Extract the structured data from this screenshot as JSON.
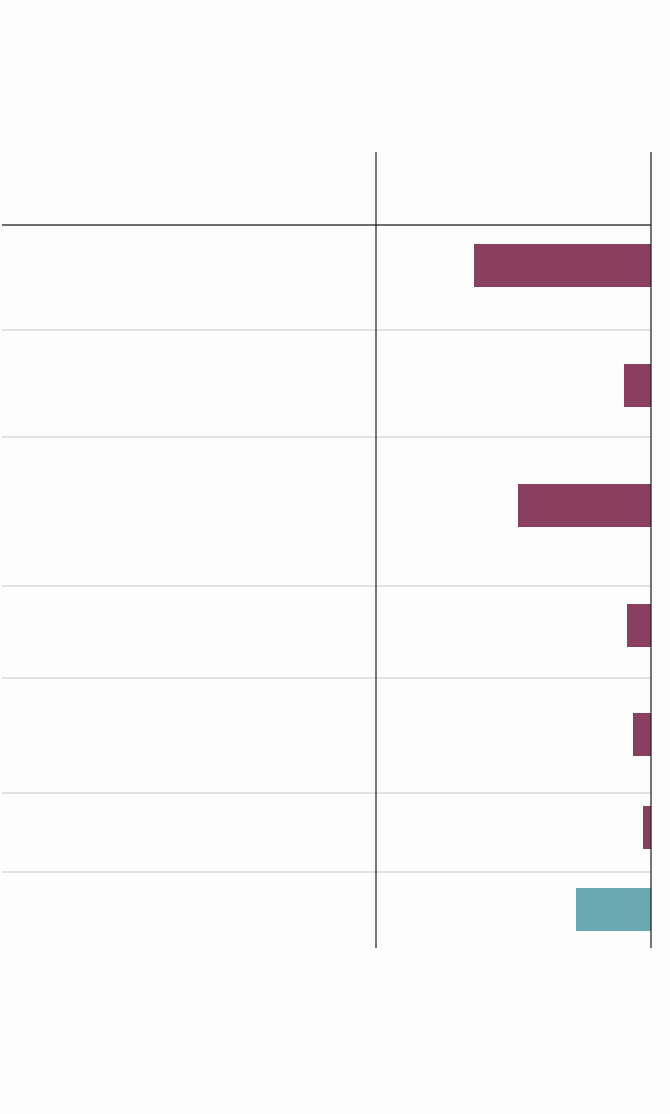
{
  "chart_data": {
    "type": "bar",
    "orientation": "horizontal",
    "categories": [
      "",
      "",
      "",
      "",
      "",
      "",
      ""
    ],
    "values": [
      -177,
      -27,
      -133,
      -24,
      -18,
      -8,
      -75
    ],
    "bar_colors": [
      "#8b3f60",
      "#8b3f60",
      "#8b3f60",
      "#8b3f60",
      "#8b3f60",
      "#8b3f60",
      "#6aa9b1"
    ],
    "colors": {
      "negative": "#8b3f60",
      "highlight": "#6aa9b1",
      "axis": "#1a1a1a",
      "separator": "#c8c8c8"
    },
    "title": "",
    "xlabel": "",
    "ylabel": "",
    "xlim": [
      -275,
      0
    ],
    "grid": false,
    "legend": "none"
  }
}
